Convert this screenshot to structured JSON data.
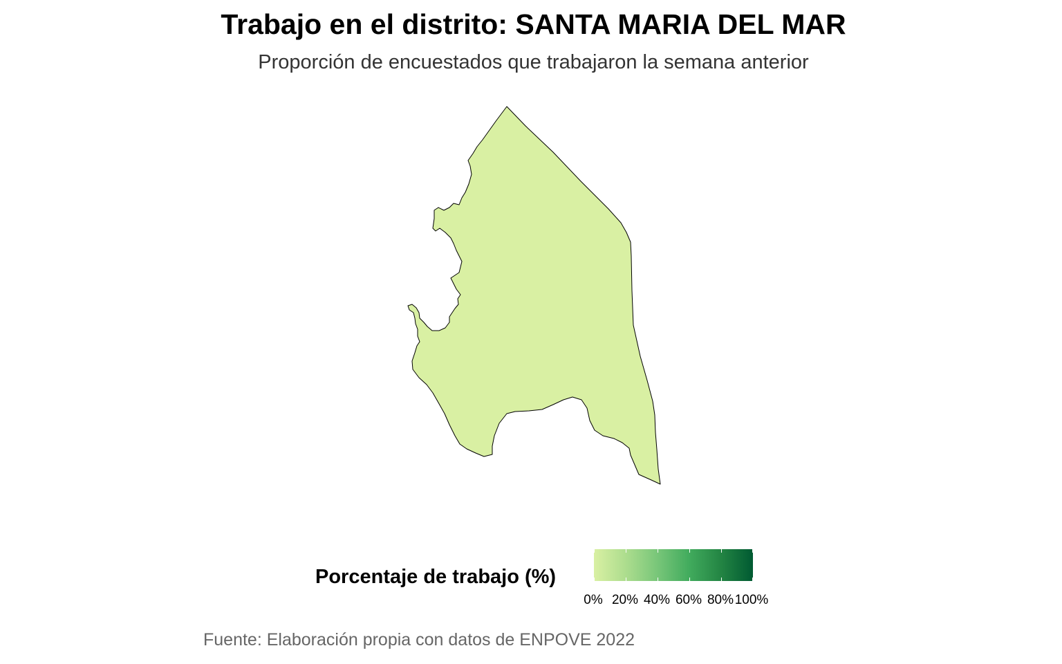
{
  "title": "Trabajo en el distrito: SANTA MARIA DEL MAR",
  "subtitle": "Proporción de encuestados que trabajaron la semana anterior",
  "map": {
    "district": "SANTA MARIA DEL MAR",
    "fill_color": "#d9f0a3",
    "border_color": "#000000"
  },
  "legend": {
    "title": "Porcentaje de trabajo (%)",
    "colors": [
      "#d9f0a3",
      "#addd8e",
      "#78c679",
      "#41ab5d",
      "#238443",
      "#005a32"
    ],
    "tick_labels": [
      "0%",
      "20%",
      "40%",
      "60%",
      "80%",
      "100%"
    ]
  },
  "caption": "Fuente: Elaboración propia con datos de ENPOVE 2022"
}
